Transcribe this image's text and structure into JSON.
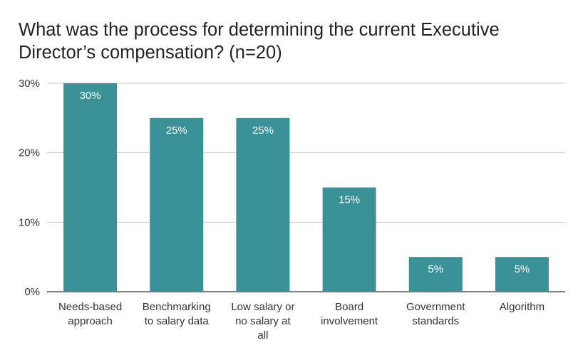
{
  "chart_data": {
    "type": "bar",
    "title": "What was the process for determining the current Executive Director’s compensation? (n=20)",
    "categories": [
      [
        "Needs-based",
        "approach"
      ],
      [
        "Benchmarking",
        "to salary data"
      ],
      [
        "Low salary or",
        "no salary at",
        "all"
      ],
      [
        "Board",
        "involvement"
      ],
      [
        "Government",
        "standards"
      ],
      [
        "Algorithm"
      ]
    ],
    "values": [
      30,
      25,
      25,
      15,
      5,
      5
    ],
    "data_labels": [
      "30%",
      "25%",
      "25%",
      "15%",
      "5%",
      "5%"
    ],
    "ylim": [
      0,
      30
    ],
    "yticks": [
      {
        "value": 0,
        "label": "0%"
      },
      {
        "value": 10,
        "label": "10%"
      },
      {
        "value": 20,
        "label": "20%"
      },
      {
        "value": 30,
        "label": "30%"
      }
    ],
    "xlabel": "",
    "ylabel": "",
    "grid": true,
    "bar_color": "#3a9198",
    "label_color": "#ffffff",
    "grid_color": "#cccccc",
    "axis_color": "#333333"
  }
}
